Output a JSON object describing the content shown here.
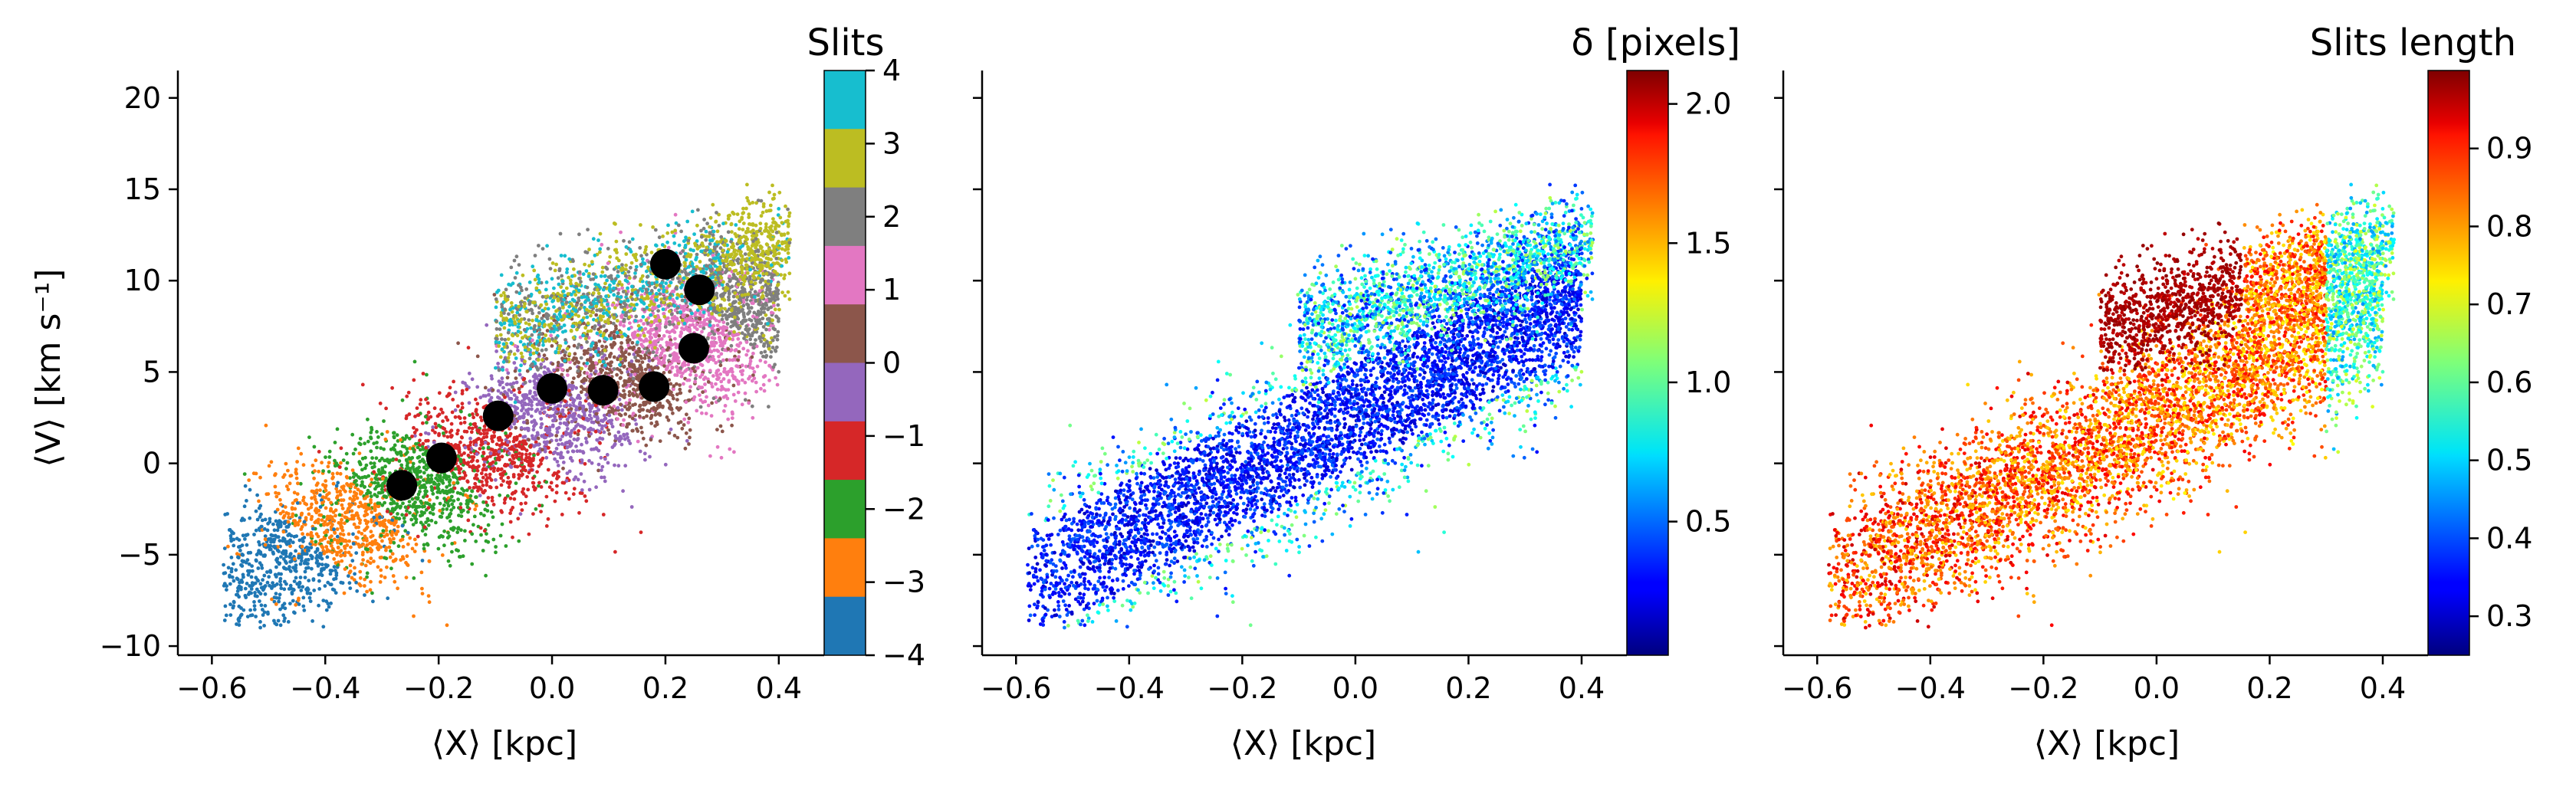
{
  "chart_data": [
    {
      "type": "scatter",
      "color_by": "Slits",
      "colorbar": {
        "title": "Slits",
        "kind": "discrete",
        "ticks": [
          "4",
          "3",
          "2",
          "1",
          "0",
          "−1",
          "−2",
          "−3",
          "−4"
        ],
        "classes": [
          {
            "value": 3.5,
            "color": "#17becf"
          },
          {
            "value": 2.5,
            "color": "#bcbd22"
          },
          {
            "value": 1.5,
            "color": "#7f7f7f"
          },
          {
            "value": 0.5,
            "color": "#e377c2"
          },
          {
            "value": -0.5,
            "color": "#8c564b"
          },
          {
            "value": -1.5,
            "color": "#9467bd"
          },
          {
            "value": -2.5,
            "color": "#d62728"
          },
          {
            "value": -3.5,
            "color": "#2ca02c"
          },
          {
            "value": -4.5,
            "color": "#ff7f0e"
          },
          {
            "value": -5.5,
            "color": "#1f77b4"
          }
        ]
      },
      "xlabel": "⟨X⟩ [kpc]",
      "ylabel": "⟨V⟩ [km s⁻¹]",
      "xlim": [
        -0.66,
        0.48
      ],
      "ylim": [
        -10.5,
        21.5
      ],
      "xticks": [
        "−0.6",
        "−0.4",
        "−0.2",
        "0.0",
        "0.2",
        "0.4"
      ],
      "yticks": [
        "20",
        "15",
        "10",
        "5",
        "0",
        "−5",
        "−10"
      ],
      "grid": false,
      "black_points": [
        {
          "x": -0.265,
          "y": -1.2
        },
        {
          "x": -0.195,
          "y": 0.3
        },
        {
          "x": -0.095,
          "y": 2.6
        },
        {
          "x": 0.0,
          "y": 4.1
        },
        {
          "x": 0.09,
          "y": 4.0
        },
        {
          "x": 0.18,
          "y": 4.2
        },
        {
          "x": 0.2,
          "y": 10.9
        },
        {
          "x": 0.26,
          "y": 9.5
        },
        {
          "x": 0.25,
          "y": 6.3
        }
      ]
    },
    {
      "type": "scatter",
      "color_by": "δ [pixels]",
      "colorbar": {
        "title": "δ [pixels]",
        "kind": "continuous",
        "cmap": "jet",
        "range": [
          0.02,
          2.12
        ],
        "ticks": [
          "2.0",
          "1.5",
          "1.0",
          "0.5"
        ],
        "tick_values": [
          2.0,
          1.5,
          1.0,
          0.5
        ]
      },
      "xlabel": "⟨X⟩ [kpc]",
      "xlim": [
        -0.66,
        0.48
      ],
      "ylim": [
        -10.5,
        21.5
      ],
      "xticks": [
        "−0.6",
        "−0.4",
        "−0.2",
        "0.0",
        "0.2",
        "0.4"
      ],
      "grid": false
    },
    {
      "type": "scatter",
      "color_by": "Slits length",
      "colorbar": {
        "title": "Slits length",
        "kind": "continuous",
        "cmap": "jet",
        "range": [
          0.25,
          1.0
        ],
        "ticks": [
          "0.9",
          "0.8",
          "0.7",
          "0.6",
          "0.5",
          "0.4",
          "0.3"
        ],
        "tick_values": [
          0.9,
          0.8,
          0.7,
          0.6,
          0.5,
          0.4,
          0.3
        ]
      },
      "xlabel": "⟨X⟩ [kpc]",
      "xlim": [
        -0.66,
        0.48
      ],
      "ylim": [
        -10.5,
        21.5
      ],
      "xticks": [
        "−0.6",
        "−0.4",
        "−0.2",
        "0.0",
        "0.2",
        "0.4"
      ],
      "grid": false
    }
  ]
}
